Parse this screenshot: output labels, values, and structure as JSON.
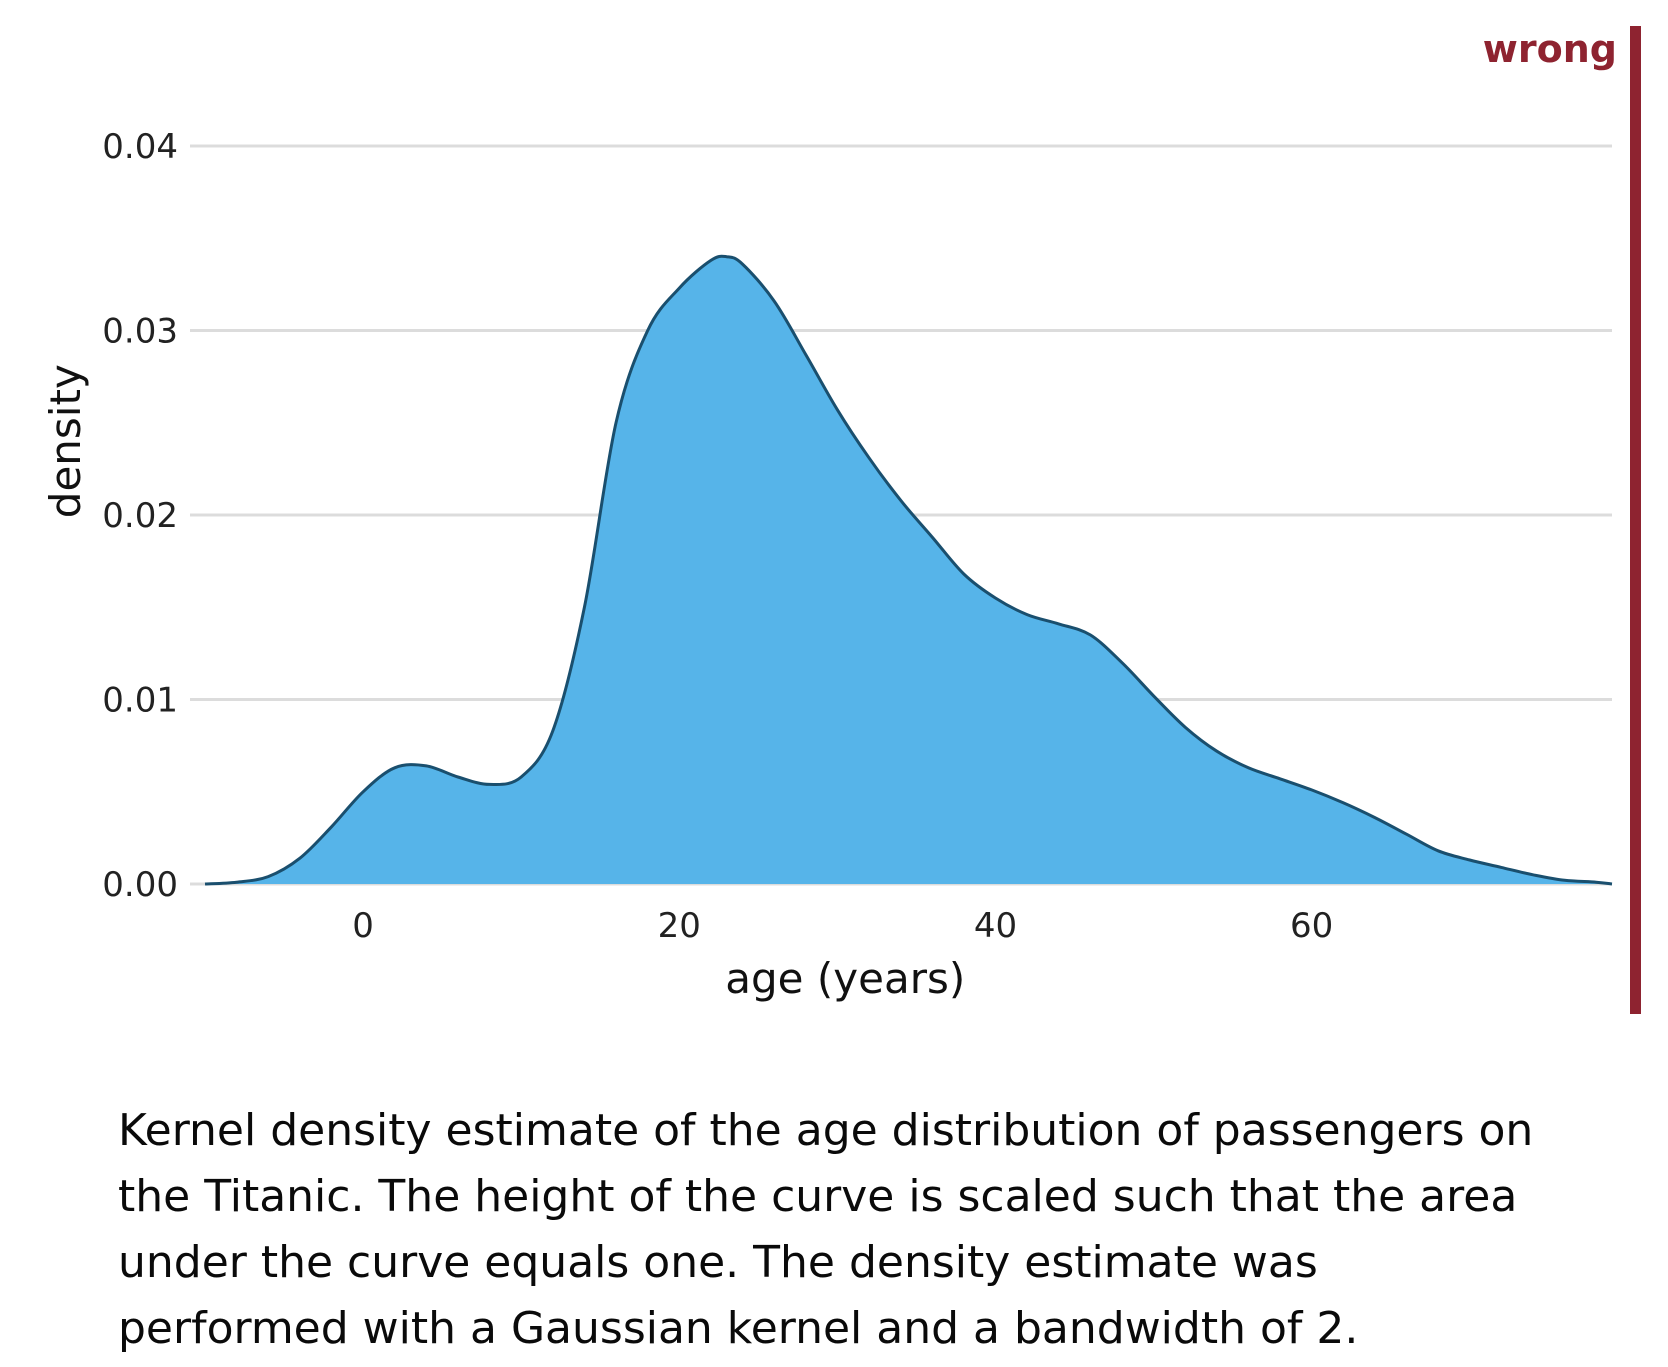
{
  "verdict": {
    "label": "wrong",
    "color": "#8e2330"
  },
  "chart_data": {
    "type": "area",
    "title": "",
    "xlabel": "age (years)",
    "ylabel": "density",
    "xlim": [
      -10,
      79
    ],
    "ylim": [
      0,
      0.04
    ],
    "xticks": [
      0,
      20,
      40,
      60
    ],
    "xtick_labels": [
      "0",
      "20",
      "40",
      "60"
    ],
    "yticks": [
      0,
      0.01,
      0.02,
      0.03,
      0.04
    ],
    "ytick_labels": [
      "0.00",
      "0.01",
      "0.02",
      "0.03",
      "0.04"
    ],
    "grid": "horizontal",
    "legend": "none",
    "fill_color": "#56b4e9",
    "line_color": "#1a4f6e",
    "series": [
      {
        "x": [
          -10,
          -8,
          -6,
          -4,
          -2,
          0,
          2,
          4,
          6,
          8,
          10,
          12,
          14,
          16,
          18,
          20,
          22,
          23,
          24,
          26,
          28,
          30,
          32,
          34,
          36,
          38,
          40,
          42,
          44,
          46,
          48,
          50,
          52,
          54,
          56,
          58,
          60,
          62,
          64,
          66,
          68,
          70,
          72,
          74,
          76,
          78,
          79
        ],
        "y": [
          0.0,
          0.0001,
          0.0004,
          0.0014,
          0.0031,
          0.005,
          0.0063,
          0.0064,
          0.0058,
          0.0054,
          0.0058,
          0.0083,
          0.015,
          0.025,
          0.03,
          0.0323,
          0.0338,
          0.034,
          0.0336,
          0.0316,
          0.0287,
          0.0257,
          0.0231,
          0.0208,
          0.0188,
          0.0168,
          0.0155,
          0.0146,
          0.0141,
          0.0135,
          0.012,
          0.0102,
          0.0085,
          0.0072,
          0.0063,
          0.0057,
          0.0051,
          0.0044,
          0.0036,
          0.0027,
          0.0018,
          0.0013,
          0.0009,
          0.0005,
          0.0002,
          0.0001,
          0.0
        ]
      }
    ]
  },
  "caption": "Kernel density estimate of the age distribution of passengers on the Titanic. The height of the curve is scaled such that the area under the curve equals one. The density estimate was performed with a Gaussian kernel and a bandwidth of 2."
}
